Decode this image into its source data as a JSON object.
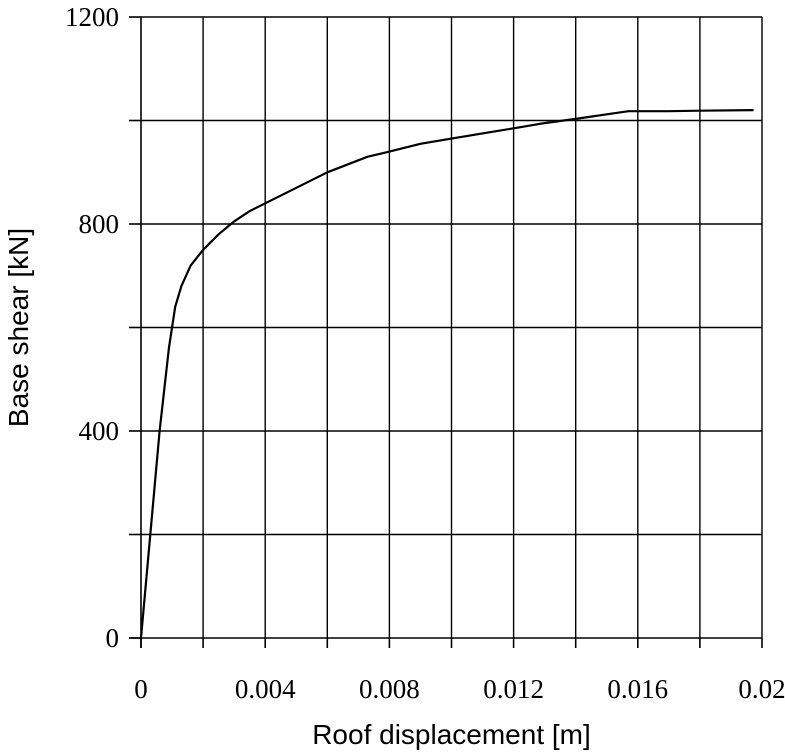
{
  "chart_data": {
    "type": "line",
    "title": "",
    "xlabel": "Roof displacement [m]",
    "ylabel": "Base shear [kN]",
    "xlim": [
      0,
      0.02
    ],
    "ylim": [
      0,
      1200
    ],
    "x_ticks": [
      {
        "value": 0,
        "label": "0"
      },
      {
        "value": 0.004,
        "label": "0.004"
      },
      {
        "value": 0.008,
        "label": "0.008"
      },
      {
        "value": 0.012,
        "label": "0.012"
      },
      {
        "value": 0.016,
        "label": "0.016"
      },
      {
        "value": 0.02,
        "label": "0.02"
      }
    ],
    "y_ticks": [
      {
        "value": 0,
        "label": "0"
      },
      {
        "value": 400,
        "label": "400"
      },
      {
        "value": 800,
        "label": "800"
      },
      {
        "value": 1200,
        "label": "1200"
      }
    ],
    "x_grid": [
      0.002,
      0.004,
      0.006,
      0.008,
      0.01,
      0.012,
      0.014,
      0.016,
      0.018,
      0.02
    ],
    "y_grid": [
      200,
      400,
      600,
      800,
      1000,
      1200
    ],
    "grid": true,
    "series": [
      {
        "x": [
          0,
          0.0003,
          0.0006,
          0.0009,
          0.0011,
          0.0013,
          0.0016,
          0.002,
          0.0025,
          0.003,
          0.0035,
          0.004,
          0.005,
          0.006,
          0.0073,
          0.008,
          0.009,
          0.01,
          0.011,
          0.012,
          0.013,
          0.014,
          0.015,
          0.0157,
          0.017,
          0.018,
          0.0197
        ],
        "y": [
          0,
          200,
          400,
          560,
          640,
          680,
          720,
          750,
          780,
          805,
          825,
          840,
          870,
          900,
          930,
          940,
          955,
          965,
          975,
          985,
          995,
          1003,
          1012,
          1018,
          1018,
          1019,
          1020
        ],
        "color": "#000000"
      }
    ]
  }
}
